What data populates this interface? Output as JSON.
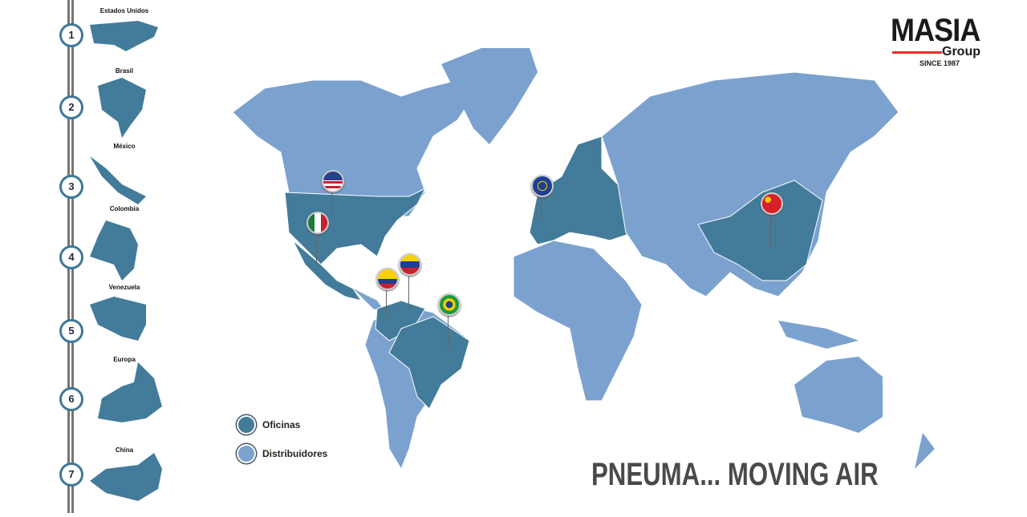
{
  "sidebar": {
    "items": [
      {
        "number": "1",
        "label": "Estados Unidos"
      },
      {
        "number": "2",
        "label": "Brasil"
      },
      {
        "number": "3",
        "label": "México"
      },
      {
        "number": "4",
        "label": "Colombia"
      },
      {
        "number": "5",
        "label": "Venezuela"
      },
      {
        "number": "6",
        "label": "Europa"
      },
      {
        "number": "7",
        "label": "China"
      }
    ]
  },
  "logo": {
    "name": "MASIA",
    "sub": "Group",
    "since": "SINCE 1987"
  },
  "legend": {
    "items": [
      {
        "label": "Oficinas",
        "color": "#437b9a"
      },
      {
        "label": "Distribuidores",
        "color": "#7ba2cf"
      }
    ]
  },
  "slogan": "PNEUMA... MOVING AIR",
  "colors": {
    "office": "#437b9a",
    "distributor": "#7ba2cf",
    "rail": "#7a7470"
  },
  "pins": [
    "usa-flag",
    "mexico-flag",
    "colombia-flag",
    "venezuela-flag",
    "brazil-flag",
    "eu-flag",
    "china-flag"
  ]
}
